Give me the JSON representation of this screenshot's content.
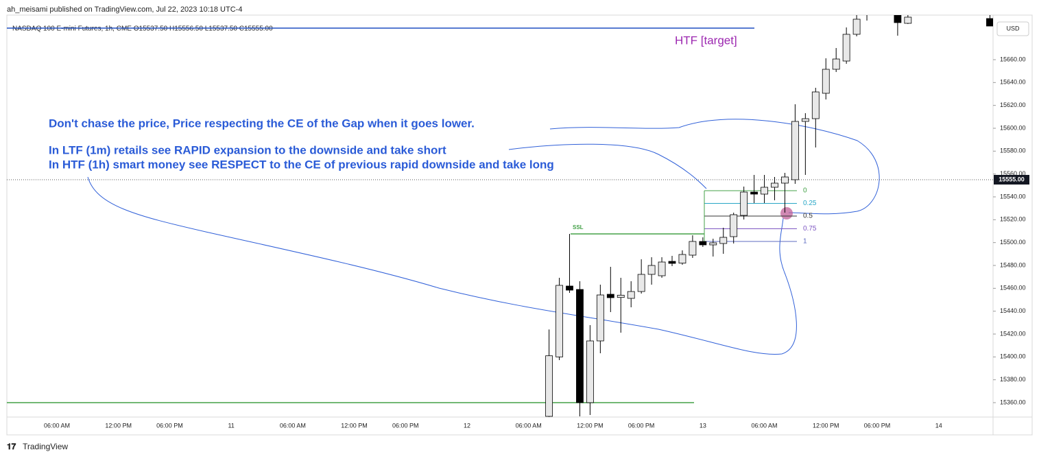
{
  "header": {
    "publisher": "ah_meisami published on TradingView.com, Jul 22, 2023 10:18 UTC-4"
  },
  "chart_data": {
    "type": "candlestick",
    "title": "NASDAQ 100 E-mini Futures, 1h, CME  O15537.50  H15556.50  L15537.50  C15555.00",
    "currency": "USD",
    "categories": [
      "06:00 AM",
      null,
      null,
      null,
      null,
      null,
      "12:00 PM",
      null,
      null,
      null,
      null,
      "06:00 PM",
      null,
      null,
      null,
      null,
      null,
      "11",
      null,
      null,
      null,
      null,
      null,
      "06:00 AM",
      null,
      null,
      null,
      null,
      null,
      "12:00 PM",
      null,
      null,
      null,
      null,
      "06:00 PM",
      null,
      null,
      null,
      null,
      null,
      "12",
      null,
      null,
      null,
      null,
      null,
      "06:00 AM",
      null,
      null,
      null,
      null,
      null,
      "12:00 PM",
      null,
      null,
      null,
      null,
      "06:00 PM",
      null,
      null,
      null,
      null,
      null,
      "13",
      null,
      null,
      null,
      null,
      null,
      "06:00 AM",
      null,
      null,
      null,
      null,
      null,
      "12:00 PM",
      null,
      null,
      null,
      null,
      "06:00 PM",
      null,
      null,
      null,
      null,
      null,
      "14",
      null,
      null,
      null,
      null,
      null
    ],
    "open": [
      null,
      null,
      null,
      null,
      null,
      null,
      null,
      null,
      null,
      null,
      null,
      null,
      null,
      null,
      null,
      null,
      null,
      null,
      null,
      null,
      null,
      null,
      null,
      null,
      null,
      null,
      null,
      null,
      null,
      null,
      null,
      null,
      null,
      null,
      null,
      null,
      null,
      null,
      null,
      null,
      null,
      null,
      null,
      null,
      null,
      null,
      null,
      null,
      15348,
      15400,
      15462,
      15459,
      15360,
      15414,
      15454.8,
      15452,
      15451.2,
      15457.2,
      15472.2,
      15471,
      15483.6,
      15482,
      15489,
      15501,
      15498,
      15499.2,
      15505.2,
      15523.8,
      15544.2,
      15542.4,
      15548.4,
      15552,
      15555,
      15606,
      15608.4,
      15630.6,
      15651.6,
      15658.8,
      15682.2,
      15700,
      null,
      null,
      15700,
      15691.8,
      null,
      null,
      null,
      null,
      null,
      null,
      null,
      15696
    ],
    "high": [
      null,
      null,
      null,
      null,
      null,
      null,
      null,
      null,
      null,
      null,
      null,
      null,
      null,
      null,
      null,
      null,
      null,
      null,
      null,
      null,
      null,
      null,
      null,
      null,
      null,
      null,
      null,
      null,
      null,
      null,
      null,
      null,
      null,
      null,
      null,
      null,
      null,
      null,
      null,
      null,
      null,
      null,
      null,
      null,
      null,
      null,
      null,
      null,
      15424,
      15469.2,
      15507.6,
      15466.2,
      15427.8,
      15463.2,
      15478.8,
      15469.2,
      15466.2,
      15485.4,
      15487.2,
      15487.2,
      15488.4,
      15493.2,
      15506.4,
      15504.6,
      15503.4,
      15513,
      15526.2,
      15549,
      15559.2,
      15559.2,
      15557.4,
      15561,
      15621,
      15613.2,
      15635.4,
      15661.2,
      15670.2,
      15688.2,
      15699,
      15710,
      null,
      null,
      15705,
      15702,
      null,
      null,
      null,
      null,
      null,
      null,
      null,
      15702
    ],
    "low": [
      null,
      null,
      null,
      null,
      null,
      null,
      null,
      null,
      null,
      null,
      null,
      null,
      null,
      null,
      null,
      null,
      null,
      null,
      null,
      null,
      null,
      null,
      null,
      null,
      null,
      null,
      null,
      null,
      null,
      null,
      null,
      null,
      null,
      null,
      null,
      null,
      null,
      null,
      null,
      null,
      null,
      null,
      null,
      null,
      null,
      null,
      null,
      null,
      15347.5,
      15397.2,
      15456,
      15348,
      15349.2,
      15403.2,
      15439.2,
      15421.2,
      15443.4,
      15455.4,
      15463.2,
      15469.2,
      15479.4,
      15480.6,
      15486.6,
      15496.2,
      15487.8,
      15490.2,
      15499.2,
      15520.2,
      15534.6,
      15534.6,
      15537,
      15526.2,
      15551.4,
      15559.2,
      15583.2,
      15625.2,
      15649.2,
      15656.4,
      15680.4,
      15694.2,
      null,
      null,
      15681,
      15691.2,
      null,
      null,
      null,
      null,
      null,
      null,
      null,
      15689.4
    ],
    "close": [
      null,
      null,
      null,
      null,
      null,
      null,
      null,
      null,
      null,
      null,
      null,
      null,
      null,
      null,
      null,
      null,
      null,
      null,
      null,
      null,
      null,
      null,
      null,
      null,
      null,
      null,
      null,
      null,
      null,
      null,
      null,
      null,
      null,
      null,
      null,
      null,
      null,
      null,
      null,
      null,
      null,
      null,
      null,
      null,
      null,
      null,
      null,
      null,
      15401,
      15462.6,
      15458.4,
      15360,
      15414,
      15454.2,
      15451.8,
      15454,
      15457.2,
      15472.2,
      15480,
      15483,
      15481.8,
      15489.6,
      15501,
      15498,
      15499.8,
      15504.6,
      15524.4,
      15544.2,
      15542.4,
      15548.4,
      15552,
      15557.4,
      15606,
      15608.4,
      15631.8,
      15651.6,
      15660.6,
      15682.2,
      15695.4,
      15705,
      null,
      null,
      15692.4,
      15697.2,
      null,
      null,
      null,
      null,
      null,
      null,
      null,
      15689.4
    ],
    "up_color": "#e8e8e8",
    "down_color": "#000000",
    "wick_color": "#000000",
    "ylim": [
      15347.4,
      15699
    ],
    "yticks": [
      {
        "value": 15360,
        "label": "15360.00"
      },
      {
        "value": 15380,
        "label": "15380.00"
      },
      {
        "value": 15400,
        "label": "15400.00"
      },
      {
        "value": 15420,
        "label": "15420.00"
      },
      {
        "value": 15440,
        "label": "15440.00"
      },
      {
        "value": 15460,
        "label": "15460.00"
      },
      {
        "value": 15480,
        "label": "15480.00"
      },
      {
        "value": 15500,
        "label": "15500.00"
      },
      {
        "value": 15520,
        "label": "15520.00"
      },
      {
        "value": 15540,
        "label": "15540.00"
      },
      {
        "value": 15560,
        "label": "15560.00"
      },
      {
        "value": 15580,
        "label": "15580.00"
      },
      {
        "value": 15600,
        "label": "15600.00"
      },
      {
        "value": 15620,
        "label": "15620.00"
      },
      {
        "value": 15640,
        "label": "15640.00"
      },
      {
        "value": 15660,
        "label": "15660.00"
      }
    ],
    "grid": false,
    "last_price": {
      "value": 15555,
      "label": "15555.00"
    },
    "levels": [
      {
        "price": 15687.6,
        "color": "#1e4fc2"
      },
      {
        "price": 15360,
        "color": "#43a047"
      },
      {
        "price": 15507.6,
        "color": "#43a047",
        "label": "SSL"
      }
    ],
    "fib": {
      "start": 15545.4,
      "end": 15501,
      "levels": [
        0,
        0.25,
        0.5,
        0.75,
        1
      ],
      "colors": [
        "#43a047",
        "#26a6c6",
        "#333333",
        "#7e57c2",
        "#5c6bc0"
      ]
    },
    "annotations": [
      "HTF [target]",
      "Don't chase the price, Price respecting the CE of the Gap when it goes lower.",
      "In LTF (1m) retails see RAPID expansion to the downside and take short",
      "In HTF (1h) smart money see RESPECT to the CE of previous rapid downside and take long"
    ]
  },
  "footer": {
    "brand": "TradingView"
  }
}
